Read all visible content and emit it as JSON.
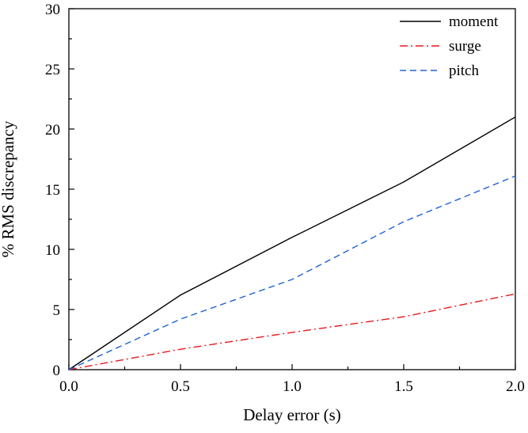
{
  "chart_data": {
    "type": "line",
    "xlabel": "Delay error (s)",
    "ylabel": "% RMS discrepancy",
    "xlim": [
      0.0,
      2.0
    ],
    "ylim": [
      0,
      30
    ],
    "x_ticks": [
      "0.0",
      "0.5",
      "1.0",
      "1.5",
      "2.0"
    ],
    "y_ticks": [
      "0",
      "5",
      "10",
      "15",
      "20",
      "25",
      "30"
    ],
    "x_tick_values": [
      0.0,
      0.5,
      1.0,
      1.5,
      2.0
    ],
    "y_tick_values": [
      0,
      5,
      10,
      15,
      20,
      25,
      30
    ],
    "grid": false,
    "legend_position": "top-right",
    "x": [
      0.0,
      0.5,
      1.0,
      1.5,
      2.0
    ],
    "series": [
      {
        "name": "moment",
        "values": [
          0,
          6.2,
          11.0,
          15.6,
          21.0
        ],
        "color": "#000000",
        "dash": "solid"
      },
      {
        "name": "surge",
        "values": [
          0,
          1.7,
          3.1,
          4.4,
          6.3
        ],
        "color": "#e8191f",
        "dash": "dashdot"
      },
      {
        "name": "pitch",
        "values": [
          0,
          4.2,
          7.5,
          12.3,
          16.1
        ],
        "color": "#1f62d6",
        "dash": "dashed"
      }
    ]
  }
}
